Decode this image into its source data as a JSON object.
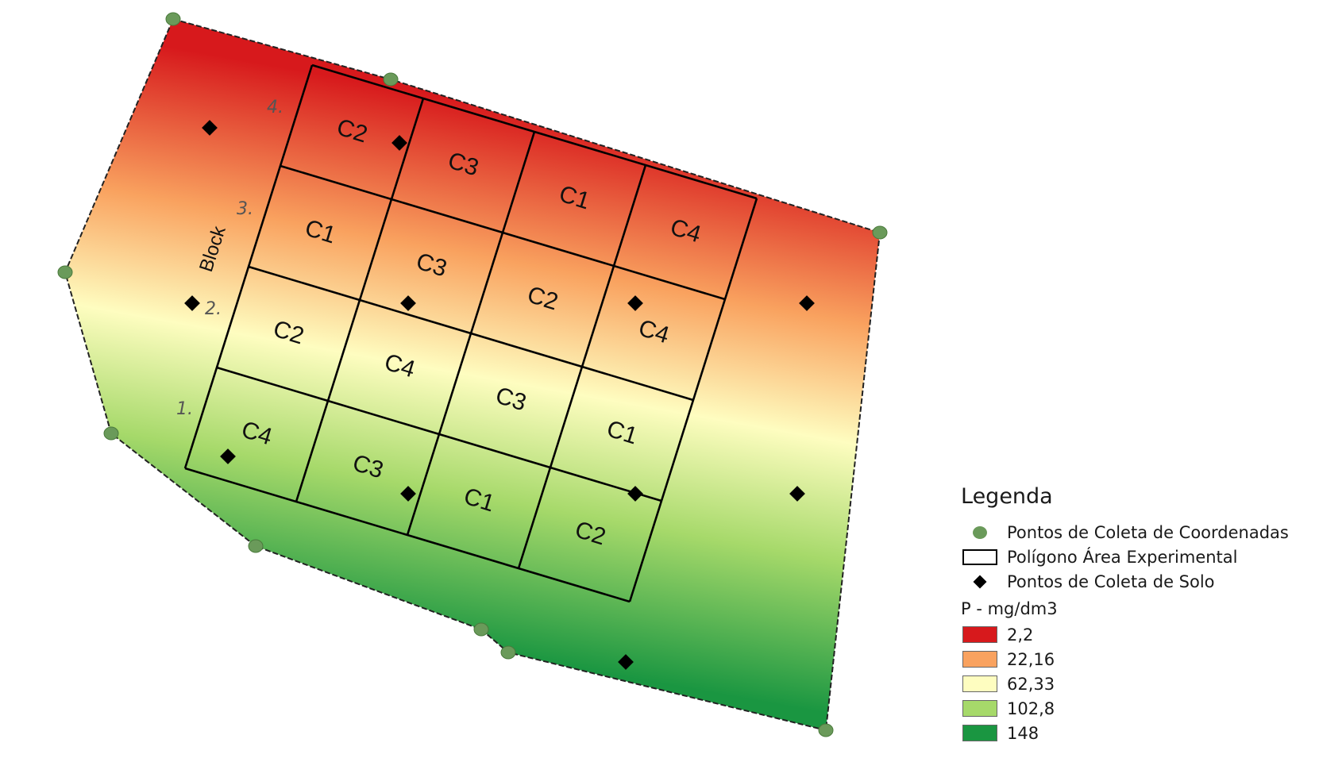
{
  "colors": {
    "low": "#d7191c",
    "mid_low": "#f9a25f",
    "mid": "#fefdc0",
    "mid_high": "#a6d96a",
    "high": "#1a9641",
    "coord_point": "#6a9a5a",
    "soil_point": "#000000"
  },
  "block_word": "Block",
  "blocks": [
    {
      "number": "1.",
      "cells": [
        "C4",
        "C3",
        "C1",
        "C2"
      ]
    },
    {
      "number": "2.",
      "cells": [
        "C2",
        "C4",
        "C3",
        "C1"
      ]
    },
    {
      "number": "3.",
      "cells": [
        "C1",
        "C3",
        "C2",
        "C4"
      ]
    },
    {
      "number": "4.",
      "cells": [
        "C2",
        "C3",
        "C1",
        "C4"
      ]
    }
  ],
  "legend": {
    "title": "Legenda",
    "items": [
      {
        "label": "Pontos de Coleta de Coordenadas",
        "icon": "green-dot-icon"
      },
      {
        "label": "Polígono Área Experimental",
        "icon": "polygon-outline-icon"
      },
      {
        "label": "Pontos de Coleta de Solo",
        "icon": "black-diamond-icon"
      }
    ],
    "variable": "P - mg/dm3",
    "classes": [
      {
        "label": "2,2",
        "color": "#d7191c"
      },
      {
        "label": "22,16",
        "color": "#f9a25f"
      },
      {
        "label": "62,33",
        "color": "#fefdc0"
      },
      {
        "label": "102,8",
        "color": "#a6d96a"
      },
      {
        "label": "148",
        "color": "#1a9641"
      }
    ]
  }
}
